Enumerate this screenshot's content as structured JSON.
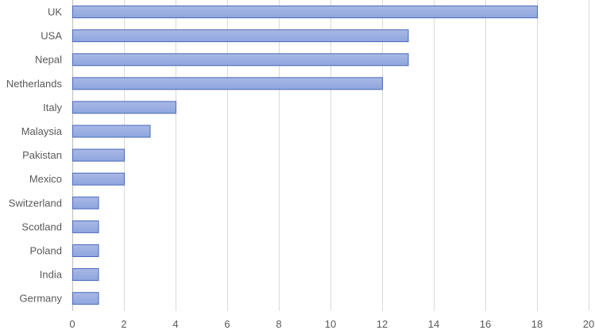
{
  "chart_data": {
    "type": "bar",
    "orientation": "horizontal",
    "categories": [
      "UK",
      "USA",
      "Nepal",
      "Netherlands",
      "Italy",
      "Malaysia",
      "Pakistan",
      "Mexico",
      "Switzerland",
      "Scotland",
      "Poland",
      "India",
      "Germany"
    ],
    "values": [
      18,
      13,
      13,
      12,
      4,
      3,
      2,
      2,
      1,
      1,
      1,
      1,
      1
    ],
    "xlim": [
      0,
      20
    ],
    "x_ticks": [
      0,
      2,
      4,
      6,
      8,
      10,
      12,
      14,
      16,
      18,
      20
    ],
    "grid": "vertical",
    "legend": "none",
    "title": "",
    "xlabel": "",
    "ylabel": "",
    "colors": {
      "bar_fill_top": "#a9b9e6",
      "bar_fill_bottom": "#8ea5dd",
      "bar_stroke": "#4a6ab8",
      "grid": "#d9d9d9",
      "text": "#595959"
    }
  }
}
